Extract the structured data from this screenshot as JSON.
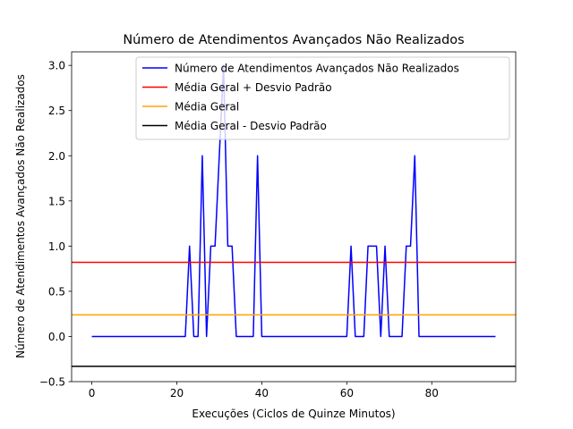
{
  "chart_data": {
    "type": "line",
    "title": "Número de Atendimentos Avançados Não Realizados",
    "xlabel": "Execuções (Ciclos de Quinze Minutos)",
    "ylabel": "Número de Atendimentos Avançados Não Realizados",
    "xlim": [
      -4.75,
      99.75
    ],
    "ylim": [
      -0.5,
      3.15
    ],
    "xticks": [
      0,
      20,
      40,
      60,
      80
    ],
    "yticks": [
      -0.5,
      0.0,
      0.5,
      1.0,
      1.5,
      2.0,
      2.5,
      3.0
    ],
    "grid": false,
    "legend_position": "upper right",
    "series": [
      {
        "name": "Número de Atendimentos Avançados Não Realizados",
        "color": "#0000ff",
        "x": [
          0,
          1,
          2,
          3,
          4,
          5,
          6,
          7,
          8,
          9,
          10,
          11,
          12,
          13,
          14,
          15,
          16,
          17,
          18,
          19,
          20,
          21,
          22,
          23,
          24,
          25,
          26,
          27,
          28,
          29,
          30,
          31,
          32,
          33,
          34,
          35,
          36,
          37,
          38,
          39,
          40,
          41,
          42,
          43,
          44,
          45,
          46,
          47,
          48,
          49,
          50,
          51,
          52,
          53,
          54,
          55,
          56,
          57,
          58,
          59,
          60,
          61,
          62,
          63,
          64,
          65,
          66,
          67,
          68,
          69,
          70,
          71,
          72,
          73,
          74,
          75,
          76,
          77,
          78,
          79,
          80,
          81,
          82,
          83,
          84,
          85,
          86,
          87,
          88,
          89,
          90,
          91,
          92,
          93,
          94,
          95
        ],
        "y": [
          0,
          0,
          0,
          0,
          0,
          0,
          0,
          0,
          0,
          0,
          0,
          0,
          0,
          0,
          0,
          0,
          0,
          0,
          0,
          0,
          0,
          0,
          0,
          1,
          0,
          0,
          2,
          0,
          1,
          1,
          2,
          3,
          1,
          1,
          0,
          0,
          0,
          0,
          0,
          2,
          0,
          0,
          0,
          0,
          0,
          0,
          0,
          0,
          0,
          0,
          0,
          0,
          0,
          0,
          0,
          0,
          0,
          0,
          0,
          0,
          0,
          1,
          0,
          0,
          0,
          1,
          1,
          1,
          0,
          1,
          0,
          0,
          0,
          0,
          1,
          1,
          2,
          0,
          0,
          0,
          0,
          0,
          0,
          0,
          0,
          0,
          0,
          0,
          0,
          0,
          0,
          0,
          0,
          0,
          0,
          0
        ]
      },
      {
        "name": "Média Geral + Desvio Padrão",
        "color": "#ff0000",
        "type": "hline",
        "y": 0.82
      },
      {
        "name": "Média Geral",
        "color": "#ffa500",
        "type": "hline",
        "y": 0.24
      },
      {
        "name": "Média Geral - Desvio Padrão",
        "color": "#000000",
        "type": "hline",
        "y": -0.33
      }
    ]
  }
}
